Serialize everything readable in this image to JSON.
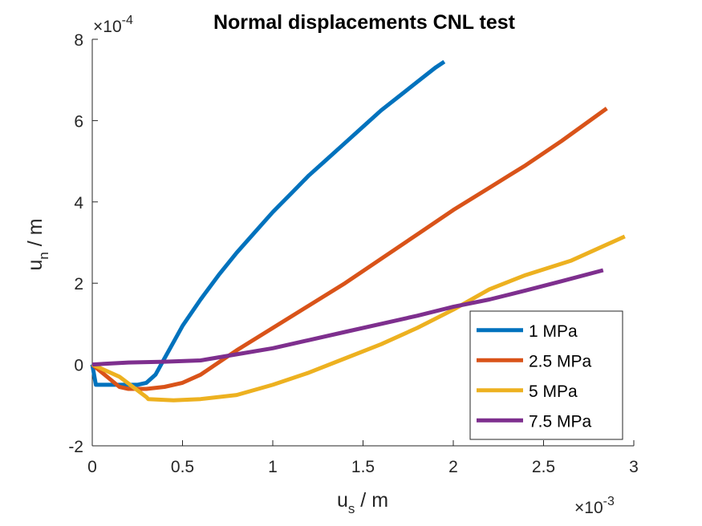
{
  "chart_data": {
    "type": "line",
    "title": "Normal displacements CNL test",
    "xlabel_main": "u",
    "xlabel_sub": "s",
    "xlabel_unit": " / m",
    "ylabel_main": "u",
    "ylabel_sub": "n",
    "ylabel_unit": " / m",
    "x_multiplier": "×10",
    "x_exponent": "-3",
    "y_multiplier": "×10",
    "y_exponent": "-4",
    "xlim": [
      0,
      3
    ],
    "ylim": [
      -2,
      8
    ],
    "xticks": [
      0,
      0.5,
      1,
      1.5,
      2,
      2.5,
      3
    ],
    "xtick_labels": [
      "0",
      "0.5",
      "1",
      "1.5",
      "2",
      "2.5",
      "3"
    ],
    "yticks": [
      -2,
      0,
      2,
      4,
      6,
      8
    ],
    "ytick_labels": [
      "-2",
      "0",
      "2",
      "4",
      "6",
      "8"
    ],
    "grid": false,
    "legend_position": "lower-right",
    "series": [
      {
        "name": "1 MPa",
        "color": "#0072BD",
        "x": [
          0,
          0.02,
          0.25,
          0.3,
          0.35,
          0.4,
          0.45,
          0.5,
          0.6,
          0.7,
          0.8,
          0.9,
          1.0,
          1.1,
          1.2,
          1.3,
          1.4,
          1.5,
          1.6,
          1.7,
          1.8,
          1.9,
          1.95
        ],
        "y": [
          0,
          -0.5,
          -0.5,
          -0.45,
          -0.25,
          0.15,
          0.55,
          0.95,
          1.6,
          2.2,
          2.75,
          3.25,
          3.75,
          4.2,
          4.65,
          5.05,
          5.45,
          5.85,
          6.25,
          6.6,
          6.95,
          7.3,
          7.45
        ]
      },
      {
        "name": "2.5 MPa",
        "color": "#D95319",
        "x": [
          0,
          0.15,
          0.2,
          0.3,
          0.4,
          0.5,
          0.6,
          0.7,
          0.8,
          1.0,
          1.2,
          1.4,
          1.6,
          1.8,
          2.0,
          2.2,
          2.4,
          2.6,
          2.85
        ],
        "y": [
          0,
          -0.55,
          -0.6,
          -0.6,
          -0.55,
          -0.45,
          -0.25,
          0.05,
          0.35,
          0.9,
          1.45,
          2.0,
          2.6,
          3.2,
          3.8,
          4.35,
          4.9,
          5.5,
          6.3
        ]
      },
      {
        "name": "5 MPa",
        "color": "#EDB120",
        "x": [
          0,
          0.15,
          0.3,
          0.31,
          0.45,
          0.6,
          0.8,
          1.0,
          1.2,
          1.4,
          1.6,
          1.8,
          2.0,
          2.2,
          2.4,
          2.65,
          2.95
        ],
        "y": [
          0,
          -0.3,
          -0.8,
          -0.85,
          -0.88,
          -0.85,
          -0.75,
          -0.5,
          -0.2,
          0.15,
          0.5,
          0.9,
          1.35,
          1.85,
          2.2,
          2.55,
          3.15
        ]
      },
      {
        "name": "7.5 MPa",
        "color": "#7E2F8E",
        "x": [
          0,
          0.2,
          0.4,
          0.6,
          0.8,
          1.0,
          1.2,
          1.4,
          1.6,
          1.8,
          2.0,
          2.2,
          2.4,
          2.6,
          2.83
        ],
        "y": [
          0,
          0.05,
          0.07,
          0.1,
          0.25,
          0.4,
          0.6,
          0.8,
          1.0,
          1.2,
          1.42,
          1.6,
          1.82,
          2.05,
          2.32
        ]
      }
    ]
  }
}
